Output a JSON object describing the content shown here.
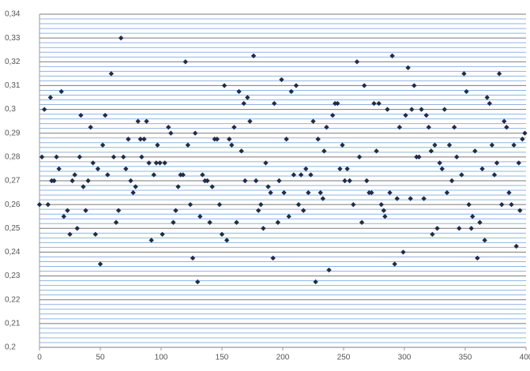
{
  "chart_data": {
    "type": "scatter",
    "color": "#1f2d4a",
    "grid": true,
    "xlim": [
      0,
      400
    ],
    "xticks": [
      0,
      50,
      100,
      150,
      200,
      250,
      300,
      350,
      400
    ],
    "ylim": [
      0.2,
      0.34
    ],
    "yticks": [
      {
        "value": 0.2,
        "label": "0,2"
      },
      {
        "value": 0.21,
        "label": "0,21"
      },
      {
        "value": 0.22,
        "label": "0,22"
      },
      {
        "value": 0.23,
        "label": "0,23"
      },
      {
        "value": 0.24,
        "label": "0,24"
      },
      {
        "value": 0.25,
        "label": "0,25"
      },
      {
        "value": 0.26,
        "label": "0,26"
      },
      {
        "value": 0.27,
        "label": "0,27"
      },
      {
        "value": 0.28,
        "label": "0,28"
      },
      {
        "value": 0.29,
        "label": "0,29"
      },
      {
        "value": 0.3,
        "label": "0,3"
      },
      {
        "value": 0.31,
        "label": "0,31"
      },
      {
        "value": 0.32,
        "label": "0,32"
      },
      {
        "value": 0.33,
        "label": "0,33"
      },
      {
        "value": 0.34,
        "label": "0,34"
      }
    ],
    "minor_yticks": [
      0.202,
      0.204,
      0.206,
      0.208,
      0.212,
      0.214,
      0.216,
      0.218,
      0.222,
      0.224,
      0.226,
      0.228,
      0.232,
      0.234,
      0.236,
      0.238,
      0.242,
      0.244,
      0.246,
      0.248,
      0.252,
      0.254,
      0.256,
      0.258,
      0.262,
      0.264,
      0.266,
      0.268,
      0.272,
      0.274,
      0.276,
      0.278,
      0.282,
      0.284,
      0.286,
      0.288,
      0.292,
      0.294,
      0.296,
      0.298,
      0.302,
      0.304,
      0.306,
      0.308,
      0.312,
      0.314,
      0.316,
      0.318,
      0.322,
      0.324,
      0.326,
      0.328,
      0.332,
      0.334,
      0.336,
      0.338
    ],
    "x": [
      0,
      2,
      4,
      7,
      9,
      10,
      12,
      14,
      16,
      18,
      20,
      23,
      25,
      27,
      29,
      31,
      33,
      34,
      36,
      38,
      40,
      42,
      44,
      46,
      48,
      50,
      52,
      54,
      56,
      59,
      61,
      63,
      65,
      67,
      69,
      71,
      73,
      75,
      77,
      79,
      81,
      83,
      84,
      86,
      88,
      90,
      92,
      94,
      96,
      97,
      99,
      101,
      103,
      106,
      108,
      110,
      112,
      114,
      116,
      118,
      120,
      122,
      124,
      126,
      128,
      130,
      132,
      134,
      136,
      138,
      140,
      142,
      144,
      146,
      148,
      150,
      152,
      154,
      156,
      158,
      160,
      162,
      164,
      166,
      168,
      169,
      171,
      173,
      176,
      178,
      180,
      182,
      184,
      186,
      188,
      190,
      192,
      193,
      196,
      197,
      199,
      201,
      203,
      205,
      207,
      209,
      211,
      213,
      215,
      217,
      219,
      221,
      223,
      225,
      227,
      229,
      231,
      233,
      234,
      236,
      238,
      241,
      243,
      245,
      247,
      249,
      251,
      253,
      255,
      258,
      261,
      263,
      265,
      267,
      269,
      271,
      273,
      275,
      277,
      279,
      281,
      283,
      284,
      286,
      288,
      290,
      292,
      294,
      296,
      299,
      301,
      303,
      305,
      306,
      308,
      310,
      312,
      314,
      316,
      318,
      320,
      322,
      323,
      325,
      327,
      329,
      331,
      333,
      335,
      337,
      339,
      341,
      343,
      345,
      347,
      349,
      351,
      353,
      355,
      356,
      358,
      360,
      362,
      364,
      366,
      368,
      370,
      372,
      374,
      376,
      378,
      380,
      382,
      384,
      386,
      388,
      390,
      392,
      394,
      395,
      397,
      399
    ],
    "values": [
      0.26,
      0.28,
      0.3,
      0.26,
      0.305,
      0.27,
      0.27,
      0.28,
      0.275,
      0.3075,
      0.255,
      0.2575,
      0.2475,
      0.27,
      0.2725,
      0.25,
      0.28,
      0.2975,
      0.2675,
      0.2575,
      0.27,
      0.2925,
      0.2775,
      0.2475,
      0.275,
      0.235,
      0.285,
      0.2975,
      0.2725,
      0.315,
      0.28,
      0.2525,
      0.2575,
      0.33,
      0.28,
      0.275,
      0.2875,
      0.27,
      0.265,
      0.2675,
      0.295,
      0.2875,
      0.28,
      0.2875,
      0.295,
      0.2775,
      0.245,
      0.2725,
      0.2775,
      0.285,
      0.2775,
      0.2475,
      0.2775,
      0.2925,
      0.29,
      0.2525,
      0.2575,
      0.2675,
      0.2725,
      0.2725,
      0.32,
      0.285,
      0.26,
      0.2375,
      0.29,
      0.2275,
      0.255,
      0.2725,
      0.27,
      0.27,
      0.2525,
      0.2675,
      0.2875,
      0.2875,
      0.26,
      0.2475,
      0.31,
      0.245,
      0.2875,
      0.285,
      0.2925,
      0.2525,
      0.3075,
      0.2825,
      0.3025,
      0.27,
      0.305,
      0.295,
      0.3225,
      0.27,
      0.2575,
      0.26,
      0.25,
      0.2775,
      0.2675,
      0.265,
      0.2375,
      0.3025,
      0.2525,
      0.27,
      0.3125,
      0.265,
      0.2875,
      0.255,
      0.3075,
      0.2725,
      0.31,
      0.26,
      0.2725,
      0.2575,
      0.275,
      0.265,
      0.2725,
      0.295,
      0.2275,
      0.2875,
      0.265,
      0.2625,
      0.2825,
      0.2925,
      0.2325,
      0.2975,
      0.3025,
      0.3025,
      0.275,
      0.285,
      0.27,
      0.275,
      0.27,
      0.26,
      0.32,
      0.28,
      0.2525,
      0.31,
      0.27,
      0.265,
      0.265,
      0.3025,
      0.2825,
      0.3025,
      0.26,
      0.2575,
      0.255,
      0.3,
      0.265,
      0.3225,
      0.235,
      0.2625,
      0.2925,
      0.24,
      0.2975,
      0.3175,
      0.2625,
      0.3,
      0.31,
      0.28,
      0.28,
      0.3,
      0.2625,
      0.2975,
      0.2925,
      0.2825,
      0.2475,
      0.285,
      0.25,
      0.2775,
      0.275,
      0.3,
      0.265,
      0.285,
      0.27,
      0.2925,
      0.28,
      0.25,
      0.2725,
      0.315,
      0.3075,
      0.26,
      0.25,
      0.255,
      0.2825,
      0.2375,
      0.2525,
      0.275,
      0.245,
      0.305,
      0.3025,
      0.285,
      0.2725,
      0.2775,
      0.315,
      0.26,
      0.295,
      0.2925,
      0.265,
      0.26,
      0.285,
      0.2425,
      0.2775,
      0.2575,
      0.2875,
      0.29
    ]
  }
}
